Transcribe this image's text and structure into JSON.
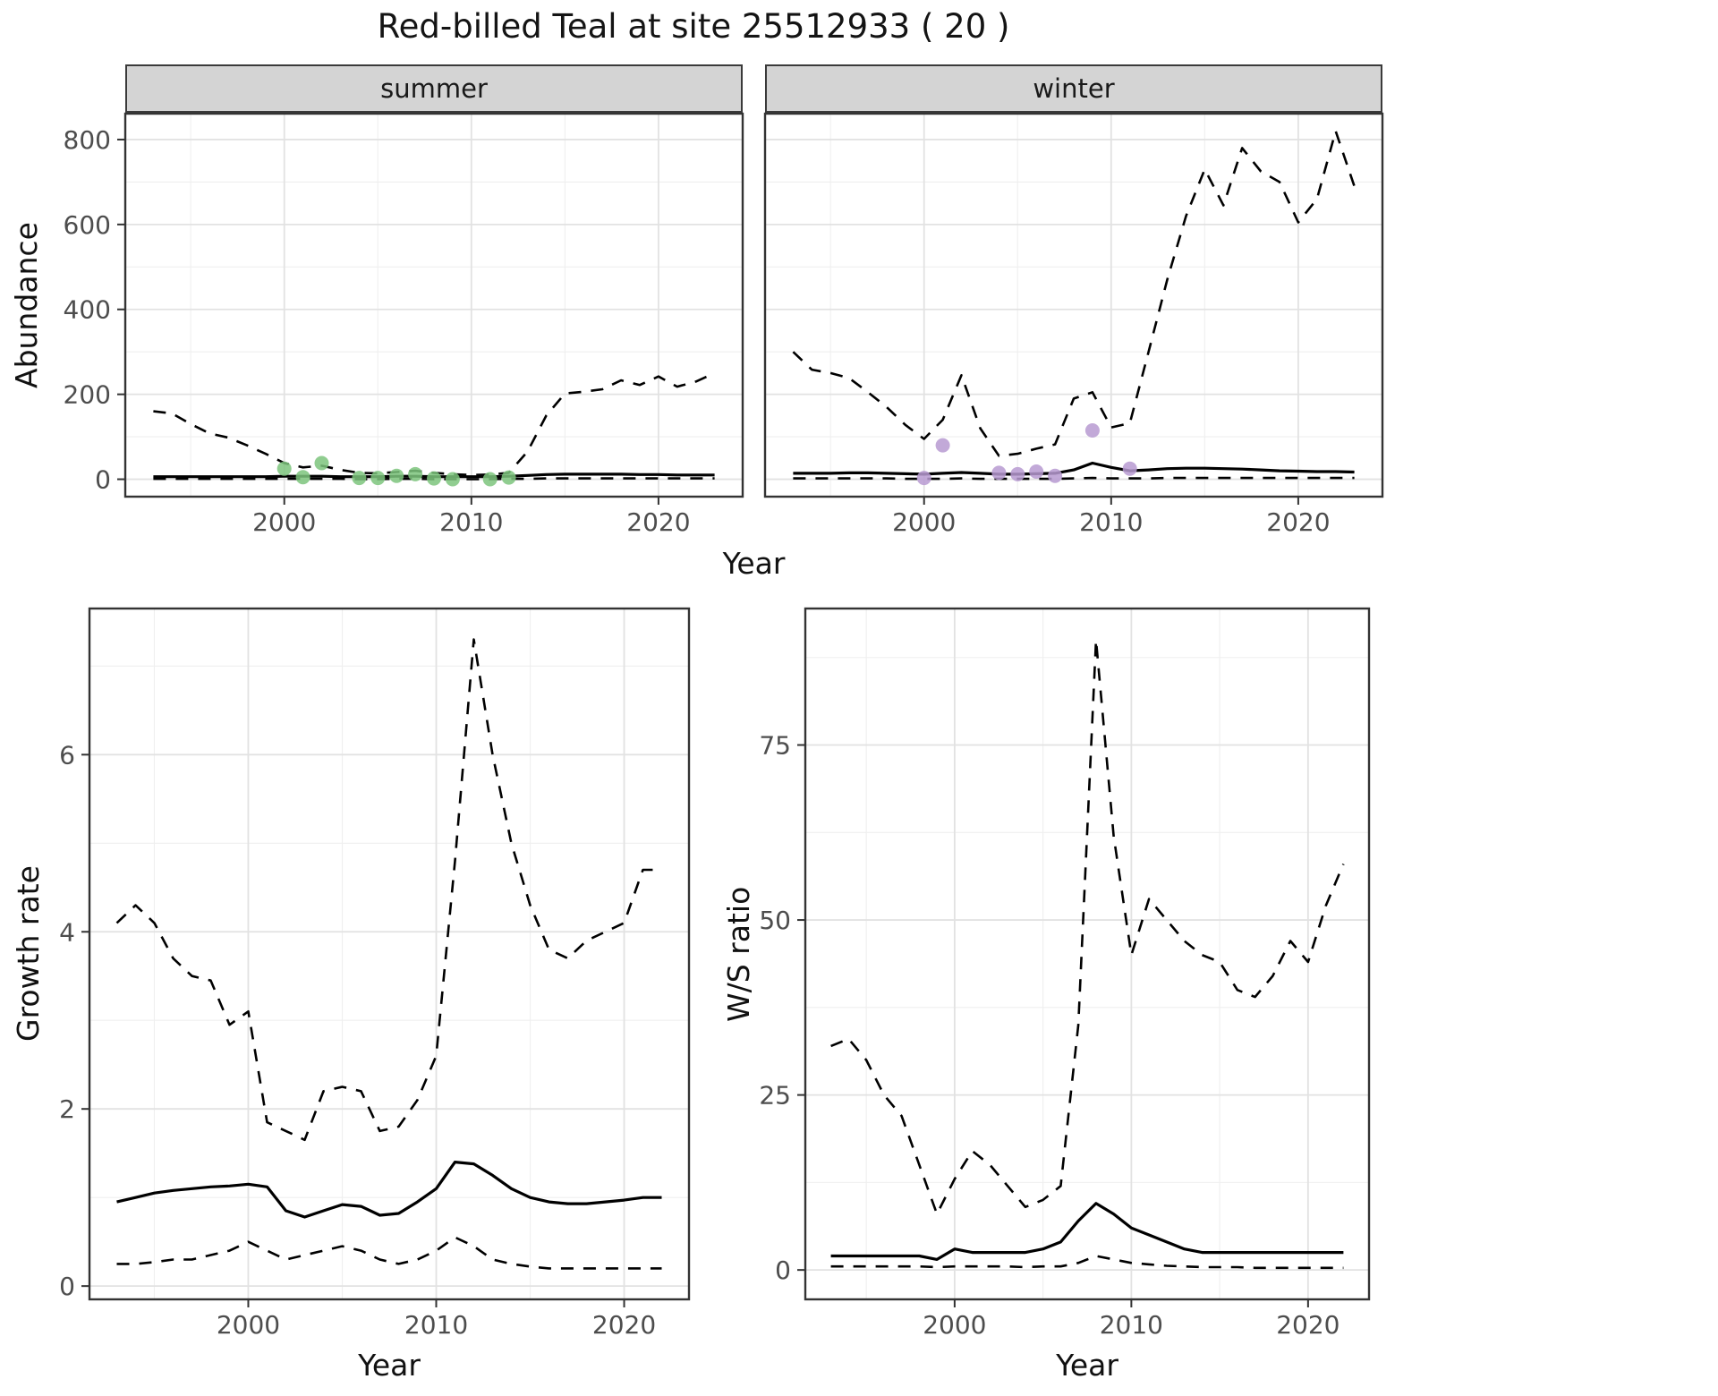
{
  "title": "Red-billed Teal at site 25512933 ( 20 )",
  "labels": {
    "abundance": "Abundance",
    "year": "Year",
    "growth": "Growth rate",
    "ratio": "W/S ratio"
  },
  "facets": {
    "summer": "summer",
    "winter": "winter"
  },
  "colors": {
    "summer_points": "#7cc47c",
    "winter_points": "#b79ad1",
    "line": "#000000",
    "grid_major": "#e2e2e2",
    "grid_minor": "#efefef",
    "panel_border": "#333333",
    "strip_fill": "#d4d4d4",
    "tick_text": "#4d4d4d"
  },
  "chart_data": [
    {
      "id": "abundance_summer",
      "type": "line",
      "facet": "summer",
      "ylabel": "Abundance",
      "xlabel": "Year",
      "xlim": [
        1991.5,
        2024.5
      ],
      "ylim": [
        -41,
        861
      ],
      "x_ticks": [
        {
          "value": 2000,
          "label": "2000"
        },
        {
          "value": 2010,
          "label": "2010"
        },
        {
          "value": 2020,
          "label": "2020"
        }
      ],
      "x_minor": [
        1995,
        2005,
        2015
      ],
      "y_ticks": [
        {
          "value": 0,
          "label": "0"
        },
        {
          "value": 200,
          "label": "200"
        },
        {
          "value": 400,
          "label": "400"
        },
        {
          "value": 600,
          "label": "600"
        },
        {
          "value": 800,
          "label": "800"
        }
      ],
      "y_minor": [
        100,
        300,
        500,
        700
      ],
      "years": [
        1993,
        1994,
        1995,
        1996,
        1997,
        1998,
        1999,
        2000,
        2001,
        2002,
        2003,
        2004,
        2005,
        2006,
        2007,
        2008,
        2009,
        2010,
        2011,
        2012,
        2013,
        2014,
        2015,
        2016,
        2017,
        2018,
        2019,
        2020,
        2021,
        2022,
        2023
      ],
      "series": [
        {
          "name": "upper-95ci",
          "style": "dashed",
          "values": [
            160,
            155,
            130,
            108,
            98,
            80,
            60,
            38,
            28,
            32,
            22,
            15,
            14,
            17,
            20,
            15,
            12,
            10,
            11,
            15,
            65,
            150,
            202,
            206,
            212,
            233,
            222,
            242,
            218,
            230,
            250
          ]
        },
        {
          "name": "median",
          "style": "solid",
          "values": [
            6,
            6,
            6,
            6,
            6,
            6,
            6,
            7,
            7,
            7,
            6,
            6,
            6,
            7,
            7,
            6,
            6,
            6,
            6,
            7,
            9,
            11,
            12,
            12,
            12,
            12,
            11,
            11,
            10,
            10,
            10
          ]
        },
        {
          "name": "lower-95ci",
          "style": "dashed",
          "values": [
            1,
            1,
            1,
            1,
            1,
            1,
            1,
            1,
            1,
            1,
            1,
            0,
            0,
            1,
            1,
            0,
            0,
            0,
            0,
            1,
            1,
            2,
            2,
            2,
            2,
            2,
            2,
            2,
            2,
            2,
            2
          ]
        }
      ],
      "observations": {
        "color": "#7cc47c",
        "data": [
          [
            2000,
            25
          ],
          [
            2001,
            5
          ],
          [
            2002,
            38
          ],
          [
            2004,
            3
          ],
          [
            2005,
            3
          ],
          [
            2006,
            8
          ],
          [
            2007,
            12
          ],
          [
            2008,
            2
          ],
          [
            2009,
            0
          ],
          [
            2011,
            0
          ],
          [
            2012,
            4
          ]
        ]
      }
    },
    {
      "id": "abundance_winter",
      "type": "line",
      "facet": "winter",
      "ylabel": "Abundance",
      "xlabel": "Year",
      "xlim": [
        1991.5,
        2024.5
      ],
      "ylim": [
        -41,
        861
      ],
      "x_ticks": [
        {
          "value": 2000,
          "label": "2000"
        },
        {
          "value": 2010,
          "label": "2010"
        },
        {
          "value": 2020,
          "label": "2020"
        }
      ],
      "x_minor": [
        1995,
        2005,
        2015
      ],
      "y_ticks": [
        {
          "value": 0,
          "label": "0"
        },
        {
          "value": 200,
          "label": "200"
        },
        {
          "value": 400,
          "label": "400"
        },
        {
          "value": 600,
          "label": "600"
        },
        {
          "value": 800,
          "label": "800"
        }
      ],
      "y_minor": [
        100,
        300,
        500,
        700
      ],
      "years": [
        1993,
        1994,
        1995,
        1996,
        1997,
        1998,
        1999,
        2000,
        2001,
        2002,
        2003,
        2004,
        2005,
        2006,
        2007,
        2008,
        2009,
        2010,
        2011,
        2012,
        2013,
        2014,
        2015,
        2016,
        2017,
        2018,
        2019,
        2020,
        2021,
        2022,
        2023
      ],
      "series": [
        {
          "name": "upper-95ci",
          "style": "dashed",
          "values": [
            300,
            258,
            250,
            238,
            205,
            170,
            128,
            95,
            140,
            245,
            120,
            55,
            60,
            72,
            82,
            190,
            205,
            122,
            132,
            300,
            470,
            620,
            730,
            645,
            780,
            725,
            700,
            605,
            660,
            820,
            690
          ]
        },
        {
          "name": "median",
          "style": "solid",
          "values": [
            14,
            14,
            14,
            15,
            15,
            14,
            13,
            12,
            14,
            16,
            14,
            12,
            12,
            13,
            14,
            22,
            38,
            28,
            20,
            22,
            25,
            26,
            26,
            25,
            24,
            22,
            20,
            19,
            18,
            18,
            17
          ]
        },
        {
          "name": "lower-95ci",
          "style": "dashed",
          "values": [
            2,
            2,
            2,
            2,
            2,
            2,
            1,
            1,
            1,
            2,
            1,
            1,
            1,
            1,
            1,
            2,
            3,
            2,
            2,
            2,
            3,
            3,
            3,
            3,
            3,
            3,
            3,
            3,
            3,
            3,
            3
          ]
        }
      ],
      "observations": {
        "color": "#b79ad1",
        "data": [
          [
            2000,
            3
          ],
          [
            2001,
            80
          ],
          [
            2004,
            15
          ],
          [
            2005,
            12
          ],
          [
            2006,
            18
          ],
          [
            2007,
            8
          ],
          [
            2009,
            115
          ],
          [
            2011,
            25
          ]
        ]
      }
    },
    {
      "id": "growth_rate",
      "type": "line",
      "ylabel": "Growth rate",
      "xlabel": "Year",
      "xlim": [
        1991.55,
        2023.45
      ],
      "ylim": [
        -0.15,
        7.65
      ],
      "x_ticks": [
        {
          "value": 2000,
          "label": "2000"
        },
        {
          "value": 2010,
          "label": "2010"
        },
        {
          "value": 2020,
          "label": "2020"
        }
      ],
      "x_minor": [
        1995,
        2005,
        2015
      ],
      "y_ticks": [
        {
          "value": 0,
          "label": "0"
        },
        {
          "value": 2,
          "label": "2"
        },
        {
          "value": 4,
          "label": "4"
        },
        {
          "value": 6,
          "label": "6"
        }
      ],
      "y_minor": [
        1,
        3,
        5,
        7
      ],
      "years": [
        1993,
        1994,
        1995,
        1996,
        1997,
        1998,
        1999,
        2000,
        2001,
        2002,
        2003,
        2004,
        2005,
        2006,
        2007,
        2008,
        2009,
        2010,
        2011,
        2012,
        2013,
        2014,
        2015,
        2016,
        2017,
        2018,
        2019,
        2020,
        2021,
        2022
      ],
      "series": [
        {
          "name": "upper-95ci",
          "style": "dashed",
          "values": [
            4.1,
            4.3,
            4.1,
            3.7,
            3.5,
            3.45,
            2.95,
            3.1,
            1.85,
            1.75,
            1.65,
            2.2,
            2.25,
            2.2,
            1.75,
            1.8,
            2.1,
            2.6,
            4.8,
            7.3,
            6.0,
            5.0,
            4.3,
            3.8,
            3.7,
            3.9,
            4.0,
            4.1,
            4.7,
            4.7
          ]
        },
        {
          "name": "median",
          "style": "solid",
          "values": [
            0.95,
            1.0,
            1.05,
            1.08,
            1.1,
            1.12,
            1.13,
            1.15,
            1.12,
            0.85,
            0.78,
            0.85,
            0.92,
            0.9,
            0.8,
            0.82,
            0.95,
            1.1,
            1.4,
            1.38,
            1.25,
            1.1,
            1.0,
            0.95,
            0.93,
            0.93,
            0.95,
            0.97,
            1.0,
            1.0
          ]
        },
        {
          "name": "lower-95ci",
          "style": "dashed",
          "values": [
            0.25,
            0.25,
            0.27,
            0.3,
            0.3,
            0.35,
            0.4,
            0.5,
            0.4,
            0.3,
            0.35,
            0.4,
            0.45,
            0.4,
            0.3,
            0.25,
            0.3,
            0.4,
            0.55,
            0.45,
            0.3,
            0.25,
            0.22,
            0.2,
            0.2,
            0.2,
            0.2,
            0.2,
            0.2,
            0.2
          ]
        }
      ]
    },
    {
      "id": "ws_ratio",
      "type": "line",
      "ylabel": "W/S ratio",
      "xlabel": "Year",
      "xlim": [
        1991.55,
        2023.45
      ],
      "ylim": [
        -4.2,
        94.5
      ],
      "x_ticks": [
        {
          "value": 2000,
          "label": "2000"
        },
        {
          "value": 2010,
          "label": "2010"
        },
        {
          "value": 2020,
          "label": "2020"
        }
      ],
      "x_minor": [
        1995,
        2005,
        2015
      ],
      "y_ticks": [
        {
          "value": 0,
          "label": "0"
        },
        {
          "value": 25,
          "label": "25"
        },
        {
          "value": 50,
          "label": "50"
        },
        {
          "value": 75,
          "label": "75"
        }
      ],
      "y_minor": [
        12.5,
        37.5,
        62.5,
        87.5
      ],
      "years": [
        1993,
        1994,
        1995,
        1996,
        1997,
        1998,
        1999,
        2000,
        2001,
        2002,
        2003,
        2004,
        2005,
        2006,
        2007,
        2008,
        2009,
        2010,
        2011,
        2012,
        2013,
        2014,
        2015,
        2016,
        2017,
        2018,
        2019,
        2020,
        2021,
        2022
      ],
      "series": [
        {
          "name": "upper-95ci",
          "style": "dashed",
          "values": [
            32,
            33,
            30,
            25,
            22,
            15,
            8,
            13,
            17,
            15,
            12,
            9,
            10,
            12,
            35,
            90,
            62,
            45,
            53,
            50,
            47,
            45,
            44,
            40,
            39,
            42,
            47,
            44,
            52,
            58
          ]
        },
        {
          "name": "median",
          "style": "solid",
          "values": [
            2,
            2,
            2,
            2,
            2,
            2,
            1.5,
            3,
            2.5,
            2.5,
            2.5,
            2.5,
            3,
            4,
            7,
            9.5,
            8,
            6,
            5,
            4,
            3,
            2.5,
            2.5,
            2.5,
            2.5,
            2.5,
            2.5,
            2.5,
            2.5,
            2.5
          ]
        },
        {
          "name": "lower-95ci",
          "style": "dashed",
          "values": [
            0.5,
            0.5,
            0.5,
            0.5,
            0.5,
            0.5,
            0.4,
            0.5,
            0.5,
            0.5,
            0.5,
            0.4,
            0.5,
            0.5,
            1,
            2,
            1.5,
            1,
            0.8,
            0.6,
            0.5,
            0.4,
            0.4,
            0.4,
            0.3,
            0.3,
            0.3,
            0.3,
            0.3,
            0.3
          ]
        }
      ]
    }
  ]
}
